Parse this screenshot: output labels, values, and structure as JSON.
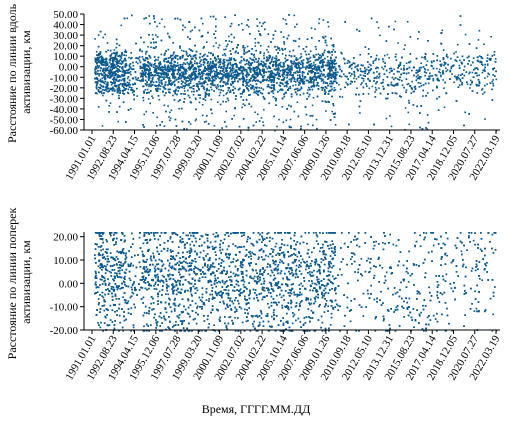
{
  "colors": {
    "points": "#0b5a8e",
    "axis": "#000000"
  },
  "shared_x_ticks": [
    "1991.01.01",
    "1992.08.23",
    "1994.04.15",
    "1995.12.06",
    "1997.07.28",
    "1999.03.20",
    "2000.11.09",
    "2002.07.02",
    "2004.02.22",
    "2005.10.14",
    "2007.06.06",
    "2009.01.26",
    "2010.09.18",
    "2012.05.10",
    "2013.12.31",
    "2015.08.23",
    "2017.04.14",
    "2018.12.05",
    "2020.07.27",
    "2022.03.19"
  ],
  "shared_xlabel": "Время, ГГГГ.ММ.ДД",
  "chart_data": [
    {
      "type": "scatter",
      "title": "",
      "ylabel_lines": [
        "Расстояние по линии вдоль",
        "активизации, км"
      ],
      "ylim": [
        -60,
        50
      ],
      "yticks": [
        "50.00",
        "40.00",
        "30.00",
        "20.00",
        "10.00",
        "0.00",
        "-10.00",
        "-20.00",
        "-30.00",
        "-40.00",
        "-50.00",
        "-60.00"
      ],
      "x_range": [
        "1991.01.01",
        "2022.03.19"
      ],
      "point_count_approx": 6000,
      "main_band_y": [
        -20,
        10
      ]
    },
    {
      "type": "scatter",
      "title": "",
      "ylabel_lines": [
        "Расстояние по линии поперек",
        "активизации, км"
      ],
      "ylim": [
        -20,
        22
      ],
      "yticks": [
        "20.00",
        "10.00",
        "0.00",
        "-10.00",
        "-20.00"
      ],
      "x_range": [
        "1991.01.01",
        "2022.03.19"
      ],
      "point_count_approx": 6000,
      "main_band_y": [
        -15,
        20
      ]
    }
  ]
}
